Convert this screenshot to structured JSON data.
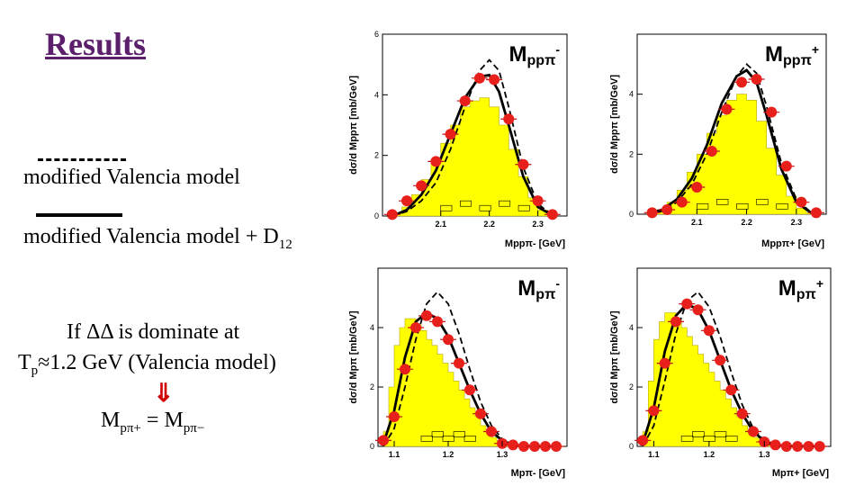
{
  "slide": {
    "title": "Results",
    "legend_dashed_label": "modified Valencia model",
    "legend_solid_label": "modified Valencia model + D",
    "legend_solid_subscript": "12",
    "condition_line1": "If ΔΔ is dominate at",
    "condition_line2_prefix": "T",
    "condition_line2_sub": "p",
    "condition_line2_rest": "≈1.2 GeV (Valencia model)",
    "arrow_glyph": "⇓",
    "equation_lhs": "M",
    "equation_lhs_sub": "pπ+",
    "equation_op": " = ",
    "equation_rhs": "M",
    "equation_rhs_sub": "pπ−"
  },
  "colors": {
    "title": "#5b1f6b",
    "histogram_fill": "#ffff00",
    "data_points": "#e8201b",
    "arrow": "#d00000"
  },
  "chart_data": [
    {
      "type": "line",
      "name": "chart-mppi-minus",
      "label_main": "M",
      "label_sub": "ppπ",
      "label_sup": "-",
      "ylabel": "dσ/d Mppπ [mb/GeV]",
      "xlabel": "Mppπ- [GeV]",
      "xlim": [
        1.98,
        2.36
      ],
      "ylim": [
        0,
        6
      ],
      "xticks": [
        2.1,
        2.2,
        2.3
      ],
      "yticks": [
        0,
        2,
        4,
        6
      ],
      "data_points": {
        "x": [
          2.0,
          2.03,
          2.06,
          2.09,
          2.12,
          2.15,
          2.18,
          2.21,
          2.24,
          2.27,
          2.3,
          2.33
        ],
        "y": [
          0.05,
          0.5,
          1.0,
          1.8,
          2.7,
          3.8,
          4.55,
          4.5,
          3.2,
          1.7,
          0.5,
          0.05
        ]
      },
      "histogram": {
        "x": [
          2.0,
          2.02,
          2.04,
          2.06,
          2.08,
          2.1,
          2.12,
          2.14,
          2.16,
          2.18,
          2.2,
          2.22,
          2.24,
          2.26,
          2.28,
          2.3,
          2.32
        ],
        "y": [
          0.1,
          0.3,
          0.7,
          1.2,
          1.8,
          2.4,
          3.0,
          3.6,
          3.8,
          3.9,
          3.6,
          3.0,
          2.2,
          1.3,
          0.6,
          0.2,
          0.05
        ]
      },
      "curve_dashed": {
        "x": [
          2.0,
          2.03,
          2.06,
          2.09,
          2.12,
          2.15,
          2.18,
          2.2,
          2.22,
          2.24,
          2.27,
          2.3,
          2.33
        ],
        "y": [
          0.0,
          0.15,
          0.5,
          1.1,
          2.2,
          3.6,
          4.8,
          5.15,
          4.8,
          3.6,
          1.6,
          0.4,
          0.03
        ]
      },
      "curve_solid": {
        "x": [
          2.0,
          2.03,
          2.06,
          2.09,
          2.12,
          2.15,
          2.18,
          2.2,
          2.22,
          2.24,
          2.27,
          2.3,
          2.33
        ],
        "y": [
          0.0,
          0.2,
          0.7,
          1.5,
          2.7,
          3.9,
          4.6,
          4.65,
          4.1,
          3.0,
          1.3,
          0.3,
          0.02
        ]
      }
    },
    {
      "type": "line",
      "name": "chart-mppi-plus",
      "label_main": "M",
      "label_sub": "ppπ",
      "label_sup": "+",
      "ylabel": "dσ/d Mppπ [mb/GeV]",
      "xlabel": "Mppπ+ [GeV]",
      "xlim": [
        1.98,
        2.36
      ],
      "ylim": [
        0,
        6
      ],
      "xticks": [
        2.1,
        2.2,
        2.3
      ],
      "yticks": [
        0,
        2,
        4
      ],
      "data_points": {
        "x": [
          2.01,
          2.04,
          2.07,
          2.1,
          2.13,
          2.16,
          2.19,
          2.22,
          2.25,
          2.28,
          2.31,
          2.34
        ],
        "y": [
          0.05,
          0.15,
          0.4,
          0.9,
          2.1,
          3.5,
          4.4,
          4.5,
          3.4,
          1.6,
          0.4,
          0.05
        ]
      },
      "histogram": {
        "x": [
          2.0,
          2.02,
          2.04,
          2.06,
          2.08,
          2.1,
          2.12,
          2.14,
          2.16,
          2.18,
          2.2,
          2.22,
          2.24,
          2.26,
          2.28,
          2.3,
          2.32
        ],
        "y": [
          0.05,
          0.15,
          0.4,
          0.8,
          1.4,
          2.0,
          2.7,
          3.3,
          3.8,
          4.0,
          3.8,
          3.1,
          2.2,
          1.3,
          0.6,
          0.2,
          0.05
        ]
      },
      "curve_dashed": {
        "x": [
          2.0,
          2.03,
          2.06,
          2.09,
          2.12,
          2.15,
          2.18,
          2.2,
          2.22,
          2.24,
          2.27,
          2.3,
          2.33
        ],
        "y": [
          0.0,
          0.1,
          0.4,
          1.0,
          2.0,
          3.4,
          4.6,
          5.0,
          4.7,
          3.6,
          1.7,
          0.5,
          0.05
        ]
      },
      "curve_solid": {
        "x": [
          2.0,
          2.03,
          2.06,
          2.09,
          2.12,
          2.15,
          2.18,
          2.2,
          2.22,
          2.24,
          2.27,
          2.3,
          2.33
        ],
        "y": [
          0.0,
          0.15,
          0.5,
          1.2,
          2.3,
          3.7,
          4.6,
          4.8,
          4.4,
          3.3,
          1.5,
          0.4,
          0.04
        ]
      }
    },
    {
      "type": "line",
      "name": "chart-mpi-minus",
      "label_main": "M",
      "label_sub": "pπ",
      "label_sup": "-",
      "ylabel": "dσ/d Mpπ [mb/GeV]",
      "xlabel": "Mpπ- [GeV]",
      "xlim": [
        1.07,
        1.42
      ],
      "ylim": [
        0,
        6
      ],
      "xticks": [
        1.1,
        1.2,
        1.3
      ],
      "yticks": [
        0,
        2,
        4
      ],
      "data_points": {
        "x": [
          1.08,
          1.1,
          1.12,
          1.14,
          1.16,
          1.18,
          1.2,
          1.22,
          1.24,
          1.26,
          1.28,
          1.3,
          1.32,
          1.34,
          1.36,
          1.38,
          1.4
        ],
        "y": [
          0.2,
          1.0,
          2.6,
          4.0,
          4.4,
          4.2,
          3.6,
          2.8,
          1.9,
          1.1,
          0.5,
          0.1,
          0.05,
          0.0,
          0.0,
          0.0,
          0.0
        ]
      },
      "histogram": {
        "x": [
          1.08,
          1.09,
          1.1,
          1.11,
          1.12,
          1.13,
          1.14,
          1.15,
          1.16,
          1.17,
          1.18,
          1.19,
          1.2,
          1.21,
          1.22,
          1.23,
          1.24,
          1.25,
          1.26,
          1.27,
          1.28,
          1.29,
          1.3,
          1.31
        ],
        "y": [
          0.5,
          2.0,
          3.4,
          4.0,
          4.3,
          4.3,
          4.1,
          3.9,
          3.6,
          3.4,
          3.1,
          2.8,
          2.5,
          2.2,
          1.9,
          1.6,
          1.3,
          1.0,
          0.7,
          0.5,
          0.3,
          0.2,
          0.1,
          0.05
        ]
      },
      "curve_dashed": {
        "x": [
          1.08,
          1.1,
          1.12,
          1.14,
          1.16,
          1.18,
          1.2,
          1.22,
          1.24,
          1.26,
          1.28,
          1.3,
          1.32,
          1.35,
          1.4
        ],
        "y": [
          0.0,
          0.6,
          2.0,
          3.6,
          4.8,
          5.2,
          4.8,
          3.8,
          2.6,
          1.5,
          0.7,
          0.25,
          0.08,
          0.02,
          0.0
        ]
      },
      "curve_solid": {
        "x": [
          1.08,
          1.1,
          1.12,
          1.14,
          1.16,
          1.18,
          1.2,
          1.22,
          1.24,
          1.26,
          1.28,
          1.3,
          1.32,
          1.35,
          1.4
        ],
        "y": [
          0.1,
          1.2,
          3.0,
          4.2,
          4.5,
          4.3,
          3.7,
          2.8,
          1.9,
          1.1,
          0.5,
          0.2,
          0.05,
          0.01,
          0.0
        ]
      }
    },
    {
      "type": "line",
      "name": "chart-mpi-plus",
      "label_main": "M",
      "label_sub": "pπ",
      "label_sup": "+",
      "ylabel": "dσ/d Mpπ [mb/GeV]",
      "xlabel": "Mpπ+ [GeV]",
      "xlim": [
        1.07,
        1.42
      ],
      "ylim": [
        0,
        6
      ],
      "xticks": [
        1.1,
        1.2,
        1.3
      ],
      "yticks": [
        0,
        2,
        4
      ],
      "data_points": {
        "x": [
          1.08,
          1.1,
          1.12,
          1.14,
          1.16,
          1.18,
          1.2,
          1.22,
          1.24,
          1.26,
          1.28,
          1.3,
          1.32,
          1.34,
          1.36,
          1.38,
          1.4
        ],
        "y": [
          0.2,
          1.2,
          2.8,
          4.2,
          4.8,
          4.6,
          3.9,
          2.9,
          1.9,
          1.1,
          0.5,
          0.15,
          0.05,
          0.0,
          0.0,
          0.0,
          0.0
        ]
      },
      "histogram": {
        "x": [
          1.08,
          1.09,
          1.1,
          1.11,
          1.12,
          1.13,
          1.14,
          1.15,
          1.16,
          1.17,
          1.18,
          1.19,
          1.2,
          1.21,
          1.22,
          1.23,
          1.24,
          1.25,
          1.26,
          1.27,
          1.28,
          1.29,
          1.3,
          1.31
        ],
        "y": [
          0.5,
          2.2,
          3.6,
          4.2,
          4.5,
          4.5,
          4.3,
          4.0,
          3.7,
          3.4,
          3.1,
          2.8,
          2.5,
          2.2,
          1.9,
          1.6,
          1.3,
          1.0,
          0.7,
          0.5,
          0.3,
          0.2,
          0.1,
          0.05
        ]
      },
      "curve_dashed": {
        "x": [
          1.08,
          1.1,
          1.12,
          1.14,
          1.16,
          1.18,
          1.2,
          1.22,
          1.24,
          1.26,
          1.28,
          1.3,
          1.32,
          1.35,
          1.4
        ],
        "y": [
          0.0,
          0.7,
          2.2,
          3.8,
          4.9,
          5.2,
          4.7,
          3.7,
          2.5,
          1.4,
          0.6,
          0.2,
          0.06,
          0.01,
          0.0
        ]
      },
      "curve_solid": {
        "x": [
          1.08,
          1.1,
          1.12,
          1.14,
          1.16,
          1.18,
          1.2,
          1.22,
          1.24,
          1.26,
          1.28,
          1.3,
          1.32,
          1.35,
          1.4
        ],
        "y": [
          0.1,
          1.3,
          3.2,
          4.4,
          4.8,
          4.6,
          3.9,
          2.9,
          1.9,
          1.1,
          0.5,
          0.18,
          0.05,
          0.01,
          0.0
        ]
      }
    }
  ]
}
